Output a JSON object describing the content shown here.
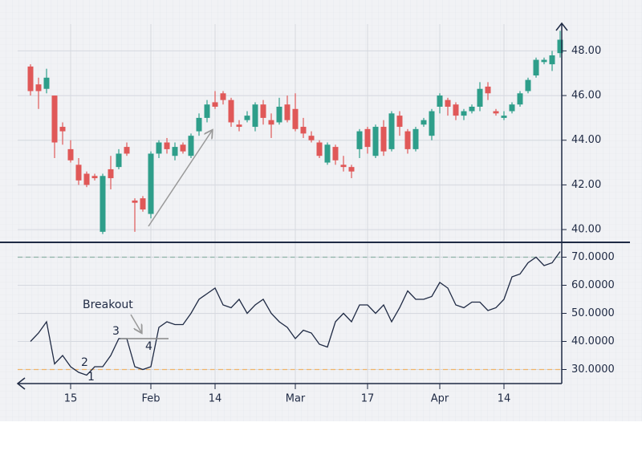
{
  "chart_data": [
    {
      "type": "candlestick",
      "up_color": "#2e9e8a",
      "down_color": "#e05858",
      "open": [
        47.3,
        46.5,
        46.3,
        46.0,
        44.6,
        43.6,
        42.9,
        42.5,
        42.4,
        39.9,
        42.7,
        42.8,
        43.7,
        41.3,
        41.4,
        40.7,
        43.4,
        43.9,
        43.3,
        43.8,
        43.3,
        44.4,
        45.0,
        45.7,
        46.1,
        45.8,
        44.7,
        44.9,
        44.6,
        45.6,
        44.9,
        44.8,
        45.6,
        45.4,
        44.6,
        44.2,
        43.9,
        43.0,
        43.7,
        42.9,
        42.8,
        43.6,
        44.5,
        43.3,
        44.6,
        43.6,
        45.1,
        44.4,
        43.6,
        44.7,
        44.2,
        45.5,
        45.8,
        45.6,
        45.1,
        45.3,
        45.5,
        46.4,
        45.3,
        45.0,
        45.3,
        45.6,
        46.2,
        46.9,
        47.5,
        47.4,
        47.9
      ],
      "high": [
        47.4,
        46.8,
        47.2,
        46.0,
        44.8,
        44.0,
        43.2,
        42.6,
        42.5,
        42.5,
        43.3,
        43.6,
        43.9,
        41.4,
        41.5,
        43.5,
        44.0,
        44.1,
        43.9,
        43.9,
        44.3,
        45.2,
        45.8,
        46.2,
        46.2,
        45.9,
        44.9,
        45.3,
        45.7,
        45.8,
        45.2,
        45.9,
        46.0,
        46.1,
        45.0,
        44.4,
        44.0,
        43.9,
        43.8,
        43.3,
        42.9,
        44.5,
        44.6,
        44.7,
        44.9,
        45.3,
        45.3,
        44.5,
        44.6,
        45.0,
        45.4,
        46.1,
        45.9,
        45.7,
        45.4,
        45.6,
        46.6,
        46.6,
        45.4,
        45.3,
        45.7,
        46.2,
        46.8,
        47.7,
        47.7,
        48.0,
        48.9
      ],
      "low": [
        46.0,
        45.4,
        46.1,
        43.2,
        43.8,
        43.0,
        42.0,
        41.9,
        42.2,
        39.8,
        41.8,
        42.7,
        43.3,
        39.9,
        40.8,
        40.5,
        43.2,
        43.4,
        43.1,
        43.4,
        43.2,
        44.2,
        44.8,
        45.4,
        45.6,
        44.6,
        44.4,
        44.8,
        44.4,
        44.7,
        44.1,
        44.7,
        44.8,
        44.4,
        44.1,
        43.9,
        43.2,
        42.9,
        42.9,
        42.6,
        42.3,
        43.2,
        43.4,
        43.2,
        43.3,
        43.5,
        44.2,
        43.4,
        43.5,
        44.6,
        44.0,
        45.2,
        45.1,
        44.9,
        44.9,
        45.2,
        45.3,
        45.8,
        45.1,
        44.9,
        45.2,
        45.5,
        46.1,
        46.8,
        47.4,
        47.1,
        47.7
      ],
      "close": [
        46.2,
        46.2,
        46.8,
        43.9,
        44.4,
        43.1,
        42.2,
        42.0,
        42.3,
        42.4,
        42.3,
        43.4,
        43.4,
        41.2,
        40.9,
        43.4,
        43.9,
        43.6,
        43.7,
        43.5,
        44.2,
        45.0,
        45.6,
        45.5,
        45.8,
        44.8,
        44.6,
        45.1,
        45.6,
        45.0,
        44.7,
        45.5,
        44.9,
        44.5,
        44.3,
        44.0,
        43.3,
        43.8,
        43.1,
        42.8,
        42.6,
        44.4,
        43.7,
        44.6,
        43.5,
        45.2,
        44.6,
        43.6,
        44.5,
        44.9,
        45.3,
        46.0,
        45.5,
        45.1,
        45.3,
        45.5,
        46.3,
        46.1,
        45.2,
        45.1,
        45.6,
        46.1,
        46.7,
        47.6,
        47.6,
        47.8,
        48.5
      ],
      "ylim": [
        39.5,
        49.2
      ],
      "yticks": [
        {
          "value": 40,
          "label": "40.00"
        },
        {
          "value": 42,
          "label": "42.00"
        },
        {
          "value": 44,
          "label": "44.00"
        },
        {
          "value": 46,
          "label": "46.00"
        },
        {
          "value": 48,
          "label": "48.00"
        }
      ],
      "grid": true
    },
    {
      "type": "line",
      "color": "#1f2a44",
      "categories": [
        null,
        null,
        null,
        null,
        null,
        "15",
        null,
        null,
        null,
        null,
        null,
        null,
        null,
        null,
        null,
        "Feb",
        null,
        null,
        null,
        null,
        null,
        null,
        null,
        "14",
        null,
        null,
        null,
        null,
        null,
        null,
        null,
        null,
        null,
        "Mar",
        null,
        null,
        null,
        null,
        null,
        null,
        null,
        null,
        "17",
        null,
        null,
        null,
        null,
        null,
        null,
        null,
        null,
        "Apr",
        null,
        null,
        null,
        null,
        null,
        null,
        null,
        "14",
        null,
        null,
        null,
        null,
        null,
        null,
        null
      ],
      "values": [
        40,
        43,
        47,
        32,
        35,
        31,
        29,
        28,
        31,
        31,
        35,
        41,
        41,
        31,
        30,
        31,
        45,
        47,
        46,
        46,
        50,
        55,
        57,
        59,
        53,
        52,
        55,
        50,
        53,
        55,
        50,
        47,
        45,
        41,
        44,
        43,
        39,
        38,
        47,
        50,
        47,
        53,
        53,
        50,
        53,
        47,
        52,
        58,
        55,
        55,
        56,
        61,
        59,
        53,
        52,
        54,
        54,
        51,
        52,
        55,
        63,
        64,
        68,
        70,
        67,
        68,
        72
      ],
      "ylim": [
        25,
        75
      ],
      "yticks": [
        {
          "value": 30,
          "label": "30.0000"
        },
        {
          "value": 40,
          "label": "40.0000"
        },
        {
          "value": 50,
          "label": "50.0000"
        },
        {
          "value": 60,
          "label": "60.0000"
        },
        {
          "value": 70,
          "label": "70.0000"
        }
      ],
      "reference_lines": [
        {
          "value": 70,
          "color": "#8fb3a8"
        },
        {
          "value": 30,
          "color": "#f0b46a"
        }
      ],
      "annotations": [
        "Breakout",
        "1",
        "2",
        "3",
        "4"
      ],
      "grid": true
    }
  ]
}
